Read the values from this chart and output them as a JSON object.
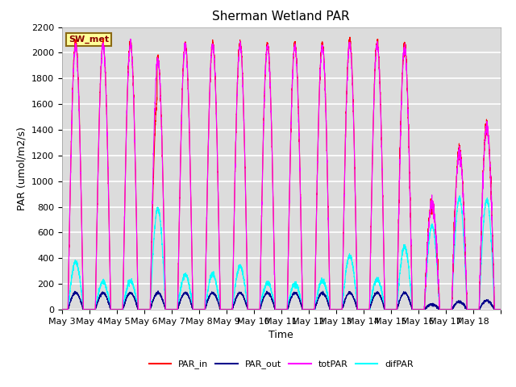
{
  "title": "Sherman Wetland PAR",
  "xlabel": "Time",
  "ylabel": "PAR (umol/m2/s)",
  "ylim": [
    0,
    2200
  ],
  "legend_label": "SW_met",
  "series_labels": [
    "PAR_in",
    "PAR_out",
    "totPAR",
    "difPAR"
  ],
  "series_colors": [
    "red",
    "#00008B",
    "magenta",
    "cyan"
  ],
  "background_color": "#dcdcdc",
  "xticklabels": [
    "May 3",
    "May 4",
    "May 5",
    "May 6",
    "May 7",
    "May 8",
    "May 9",
    "May 10",
    "May 11",
    "May 12",
    "May 13",
    "May 14",
    "May 15",
    "May 16",
    "May 17",
    "May 18"
  ],
  "legend_box_color": "#ffff99",
  "legend_box_edge": "#8B6914",
  "title_fontsize": 11,
  "axis_label_fontsize": 9,
  "tick_label_fontsize": 8,
  "figwidth": 6.4,
  "figheight": 4.8,
  "dpi": 100,
  "n_days": 16,
  "ds": 0.22,
  "de": 0.78,
  "PAR_in_peaks": [
    2080,
    2075,
    2085,
    1960,
    2070,
    2070,
    2080,
    2065,
    2065,
    2065,
    2095,
    2080,
    2040,
    830,
    1240,
    1430
  ],
  "PAR_out_peaks": [
    130,
    130,
    130,
    130,
    130,
    130,
    130,
    130,
    130,
    130,
    130,
    130,
    130,
    40,
    60,
    70
  ],
  "totPAR_peaks": [
    2055,
    2055,
    2065,
    1940,
    2055,
    2055,
    2060,
    2050,
    2050,
    2050,
    2060,
    2060,
    2025,
    820,
    1220,
    1420
  ],
  "difPAR_peaks": [
    370,
    215,
    220,
    790,
    270,
    275,
    335,
    205,
    200,
    225,
    420,
    235,
    490,
    650,
    870,
    860
  ]
}
